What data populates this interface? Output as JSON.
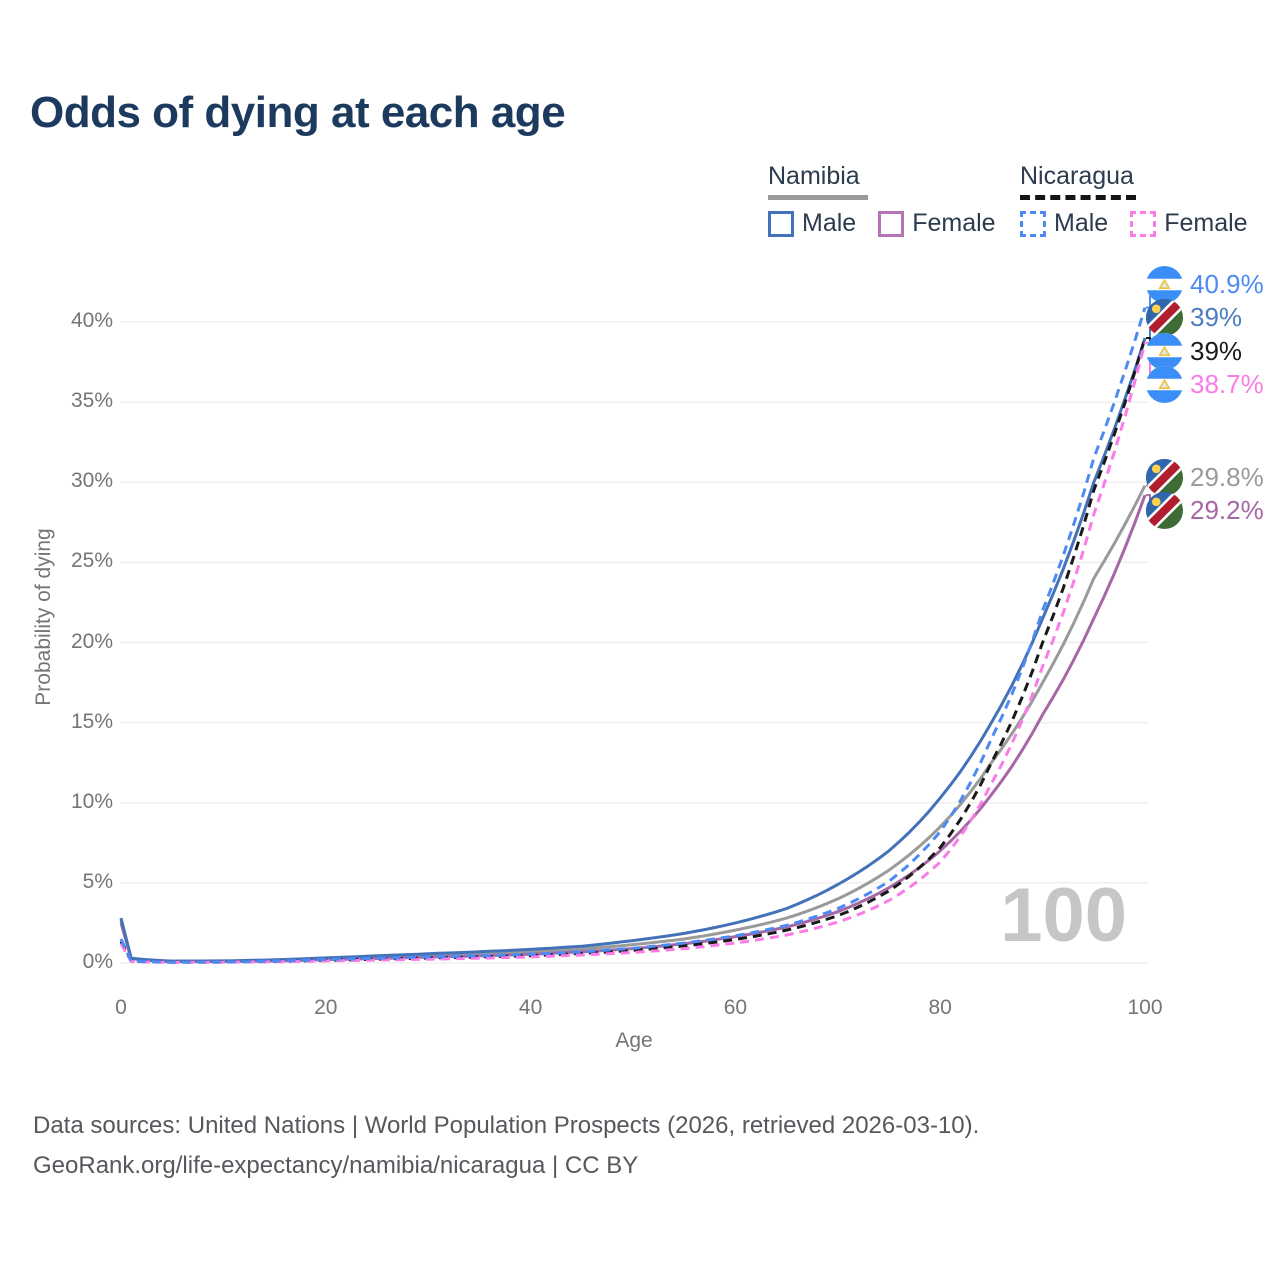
{
  "title": "Odds of dying at each age",
  "legend": {
    "groups": [
      {
        "country": "Namibia",
        "line_style": "solid",
        "both_sexes_color": "#9a9a9a",
        "items": [
          {
            "label": "Male",
            "color": "#4472b8"
          },
          {
            "label": "Female",
            "color": "#b573b5"
          }
        ]
      },
      {
        "country": "Nicaragua",
        "line_style": "dashed",
        "both_sexes_color": "#151515",
        "items": [
          {
            "label": "Male",
            "color": "#4e8af3"
          },
          {
            "label": "Female",
            "color": "#fb7ce8"
          }
        ]
      }
    ]
  },
  "chart_data": {
    "type": "line",
    "title": "Odds of dying at each age",
    "xlabel": "Age",
    "ylabel": "Probability of dying",
    "x_ticks": [
      0,
      20,
      40,
      60,
      80,
      100
    ],
    "y_ticks": [
      "0%",
      "5%",
      "10%",
      "15%",
      "20%",
      "25%",
      "30%",
      "35%",
      "40%"
    ],
    "y_tick_values": [
      0,
      5,
      10,
      15,
      20,
      25,
      30,
      35,
      40
    ],
    "xlim": [
      0,
      100
    ],
    "ylim": [
      0,
      42
    ],
    "grid": true,
    "legend_position": "top-right",
    "watermark": "100",
    "ages": [
      0,
      1,
      5,
      10,
      15,
      20,
      25,
      30,
      35,
      40,
      45,
      50,
      55,
      60,
      65,
      70,
      75,
      80,
      85,
      90,
      95,
      100
    ],
    "series": [
      {
        "name": "Namibia male",
        "country": "Namibia",
        "sex": "male",
        "color": "#4472b8",
        "dash": false,
        "values": [
          2.8,
          0.3,
          0.12,
          0.13,
          0.2,
          0.32,
          0.45,
          0.58,
          0.7,
          0.85,
          1.05,
          1.4,
          1.85,
          2.5,
          3.4,
          4.9,
          7.0,
          10.3,
          15.0,
          21.5,
          30.0,
          39.0
        ]
      },
      {
        "name": "Namibia female",
        "country": "Namibia",
        "sex": "female",
        "color": "#a668a4",
        "dash": false,
        "values": [
          2.5,
          0.26,
          0.09,
          0.1,
          0.13,
          0.21,
          0.28,
          0.37,
          0.45,
          0.55,
          0.7,
          0.9,
          1.2,
          1.65,
          2.25,
          3.2,
          4.7,
          7.0,
          10.5,
          15.5,
          21.5,
          29.2
        ]
      },
      {
        "name": "Namibia both sexes",
        "country": "Namibia",
        "sex": "both",
        "color": "#9a9a9a",
        "dash": false,
        "values": [
          2.65,
          0.28,
          0.1,
          0.11,
          0.16,
          0.26,
          0.36,
          0.47,
          0.57,
          0.7,
          0.87,
          1.15,
          1.5,
          2.05,
          2.8,
          4.0,
          5.8,
          8.5,
          12.5,
          17.5,
          24.0,
          29.8
        ]
      },
      {
        "name": "Nicaragua male",
        "country": "Nicaragua",
        "sex": "male",
        "color": "#4e8af3",
        "dash": true,
        "values": [
          1.5,
          0.12,
          0.05,
          0.06,
          0.12,
          0.22,
          0.3,
          0.38,
          0.45,
          0.55,
          0.7,
          0.92,
          1.25,
          1.7,
          2.35,
          3.4,
          5.1,
          8.2,
          14.0,
          22.0,
          31.5,
          40.9
        ]
      },
      {
        "name": "Nicaragua female",
        "country": "Nicaragua",
        "sex": "female",
        "color": "#fb7ce8",
        "dash": true,
        "values": [
          1.2,
          0.1,
          0.04,
          0.05,
          0.08,
          0.13,
          0.18,
          0.24,
          0.3,
          0.38,
          0.5,
          0.66,
          0.9,
          1.25,
          1.75,
          2.55,
          3.9,
          6.3,
          11.2,
          18.5,
          28.0,
          38.7
        ]
      },
      {
        "name": "Nicaragua both sexes",
        "country": "Nicaragua",
        "sex": "both",
        "color": "#1a1a1a",
        "dash": true,
        "values": [
          1.35,
          0.11,
          0.05,
          0.06,
          0.1,
          0.17,
          0.24,
          0.31,
          0.38,
          0.46,
          0.6,
          0.79,
          1.07,
          1.47,
          2.05,
          2.95,
          4.5,
          7.2,
          12.5,
          20.0,
          29.5,
          39.0
        ]
      }
    ],
    "end_labels": [
      {
        "text": "40.9%",
        "value": 40.9,
        "color": "#4e8af3",
        "flag": "nicaragua",
        "series": "Nicaragua male"
      },
      {
        "text": "39%",
        "value": 39.0,
        "color": "#4c7cc4",
        "flag": "namibia",
        "series": "Namibia male"
      },
      {
        "text": "39%",
        "value": 39.0,
        "color": "#1a1a1a",
        "flag": "nicaragua",
        "series": "Nicaragua both sexes"
      },
      {
        "text": "38.7%",
        "value": 38.7,
        "color": "#fb7ce8",
        "flag": "nicaragua",
        "series": "Nicaragua female"
      },
      {
        "text": "29.8%",
        "value": 29.8,
        "color": "#9a9a9a",
        "flag": "namibia",
        "series": "Namibia both sexes"
      },
      {
        "text": "29.2%",
        "value": 29.2,
        "color": "#a668a4",
        "flag": "namibia",
        "series": "Namibia female"
      }
    ]
  },
  "footer": {
    "line1": "Data sources: United Nations | World Population Prospects (2026, retrieved 2026-03-10).",
    "line2": "GeoRank.org/life-expectancy/namibia/nicaragua | CC BY"
  }
}
